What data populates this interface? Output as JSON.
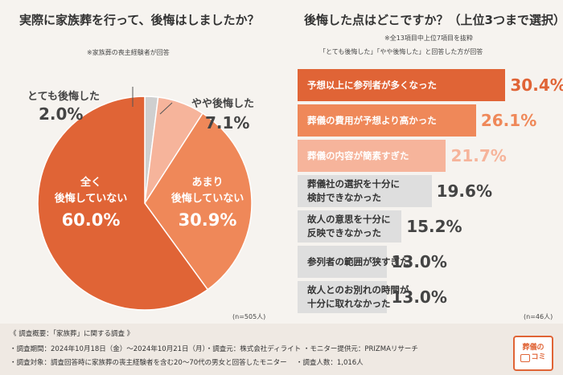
{
  "left": {
    "title": "実際に家族葬を行って、後悔はしましたか？",
    "note": "※家族葬の喪主経験者が回答",
    "n_label": "(n=505人)"
  },
  "right": {
    "title": "後悔した点はどこですか？（上位3つまで選択）",
    "note1": "※全13項目中上位7項目を抜粋",
    "note2": "「とても後悔した」「やや後悔した」と回答した方が回答",
    "n_label": "(n=46人)"
  },
  "chart_data": [
    {
      "type": "pie",
      "title": "実際に家族葬を行って、後悔はしましたか？",
      "categories": [
        "とても後悔した",
        "やや後悔した",
        "あまり後悔していない",
        "全く後悔していない"
      ],
      "values": [
        2.0,
        7.1,
        30.9,
        60.0
      ],
      "value_labels": [
        "2.0%",
        "7.1%",
        "30.9%",
        "60.0%"
      ],
      "colors": [
        "#cfcfcf",
        "#f6b49b",
        "#ef8859",
        "#e06436"
      ]
    },
    {
      "type": "bar",
      "orientation": "horizontal",
      "title": "後悔した点はどこですか？（上位3つまで選択）",
      "categories": [
        [
          "予想以上に参列者が多くなった"
        ],
        [
          "葬儀の費用が予想より高かった"
        ],
        [
          "葬儀の内容が簡素すぎた"
        ],
        [
          "葬儀社の選択を十分に",
          "検討できなかった"
        ],
        [
          "故人の意思を十分に",
          "反映できなかった"
        ],
        [
          "参列者の範囲が狭すぎた"
        ],
        [
          "故人とのお別れの時間が",
          "十分に取れなかった"
        ]
      ],
      "values": [
        30.4,
        26.1,
        21.7,
        19.6,
        15.2,
        13.0,
        13.0
      ],
      "value_labels": [
        "30.4%",
        "26.1%",
        "21.7%",
        "19.6%",
        "15.2%",
        "13.0%",
        "13.0%"
      ],
      "colors": [
        "#e06436",
        "#ef8859",
        "#f6b49b",
        "#dedede",
        "#dedede",
        "#dedede",
        "#dedede"
      ]
    }
  ],
  "footer": {
    "line1": "《 調査概要：「家族葬」に関する調査 》",
    "line2": "・調査期間：2024年10月18日（金）〜2024年10月21日（月）・調査元：株式会社ディライト ・モニター提供元：PRIZMAリサーチ",
    "line3": "・調査対象：調査回答時に家族葬の喪主経験者を含む20〜70代の男女と回答したモニター　 ・調査人数：1,016人"
  },
  "logo": {
    "top": "葬儀の",
    "bottom": "コミ"
  }
}
